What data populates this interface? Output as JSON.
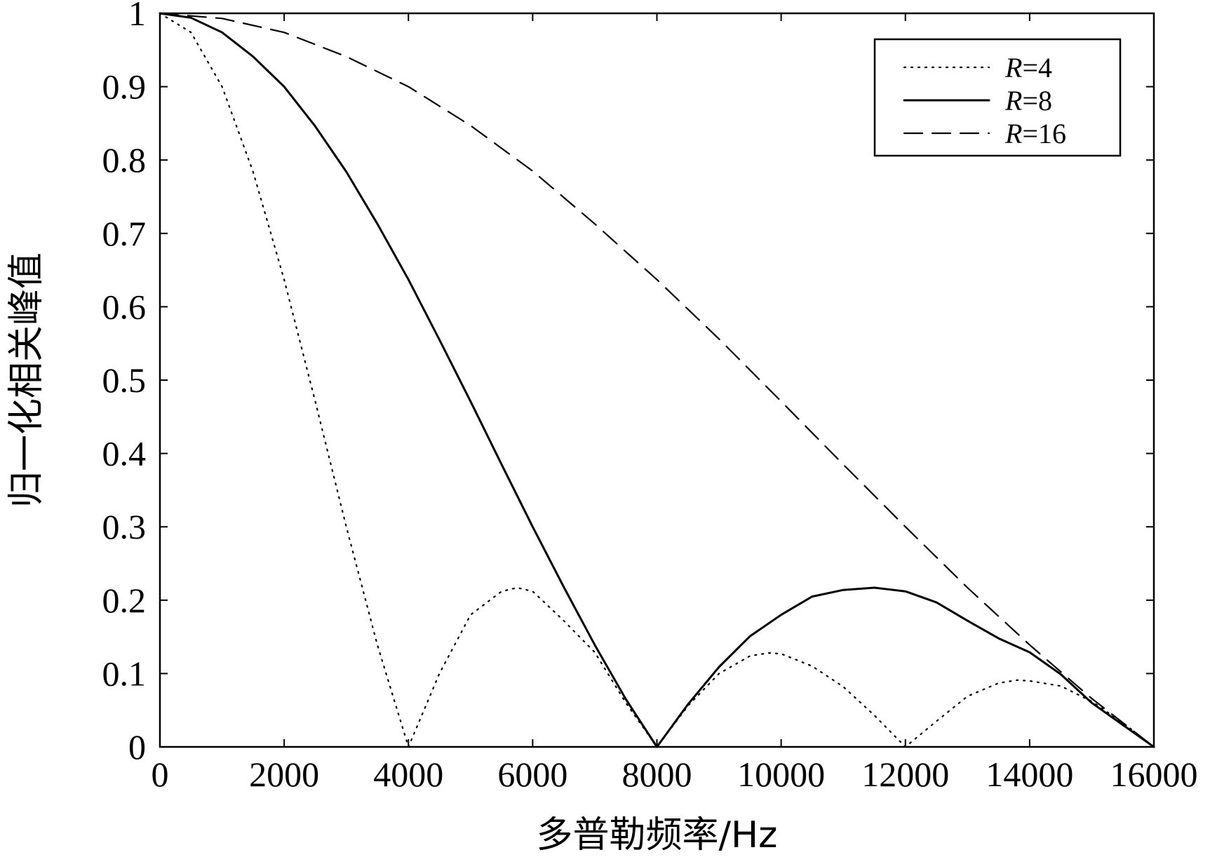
{
  "chart_data": {
    "type": "line",
    "title": "",
    "xlabel": "多普勒频率/Hz",
    "ylabel": "归一化相关峰值",
    "xlim": [
      0,
      16000
    ],
    "ylim": [
      0,
      1
    ],
    "xticks": [
      0,
      2000,
      4000,
      6000,
      8000,
      10000,
      12000,
      14000,
      16000
    ],
    "yticks": [
      0,
      0.1,
      0.2,
      0.3,
      0.4,
      0.5,
      0.6,
      0.7,
      0.8,
      0.9,
      1
    ],
    "xtick_labels": [
      "0",
      "2000",
      "4000",
      "6000",
      "8000",
      "10000",
      "12000",
      "14000",
      "16000"
    ],
    "ytick_labels": [
      "0",
      "0.1",
      "0.2",
      "0.3",
      "0.4",
      "0.5",
      "0.6",
      "0.7",
      "0.8",
      "0.9",
      "1"
    ],
    "grid": false,
    "legend_position": "top-right",
    "series": [
      {
        "name": "R=4",
        "label_var": "R",
        "label_rest": "=4",
        "style": "dotted",
        "color": "#000000",
        "x": [
          0,
          500,
          1000,
          1500,
          2000,
          2500,
          3000,
          3500,
          4000,
          4500,
          5000,
          5500,
          5750,
          6000,
          6500,
          7000,
          7500,
          8000,
          8500,
          9000,
          9500,
          9800,
          10000,
          10500,
          11000,
          11500,
          12000,
          12500,
          13000,
          13500,
          13800,
          14000,
          14500,
          15000,
          15500,
          16000
        ],
        "y": [
          1,
          0.974,
          0.9,
          0.784,
          0.637,
          0.471,
          0.3,
          0.139,
          0,
          0.1,
          0.18,
          0.212,
          0.217,
          0.212,
          0.172,
          0.129,
          0.06,
          0,
          0.056,
          0.1,
          0.124,
          0.128,
          0.127,
          0.11,
          0.082,
          0.043,
          0,
          0.035,
          0.069,
          0.087,
          0.091,
          0.09,
          0.083,
          0.062,
          0.033,
          0
        ]
      },
      {
        "name": "R=8",
        "label_var": "R",
        "label_rest": "=8",
        "style": "solid",
        "color": "#000000",
        "x": [
          0,
          500,
          1000,
          1500,
          2000,
          2500,
          3000,
          3500,
          4000,
          4500,
          5000,
          5500,
          6000,
          6500,
          7000,
          7500,
          8000,
          8500,
          9000,
          9500,
          10000,
          10500,
          11000,
          11500,
          12000,
          12500,
          13000,
          13500,
          14000,
          14500,
          15000,
          15500,
          16000
        ],
        "y": [
          1,
          0.994,
          0.974,
          0.941,
          0.9,
          0.846,
          0.784,
          0.713,
          0.637,
          0.555,
          0.471,
          0.385,
          0.3,
          0.218,
          0.139,
          0.065,
          0,
          0.058,
          0.109,
          0.151,
          0.18,
          0.205,
          0.214,
          0.217,
          0.212,
          0.197,
          0.172,
          0.148,
          0.129,
          0.099,
          0.06,
          0.03,
          0
        ]
      },
      {
        "name": "R=16",
        "label_var": "R",
        "label_rest": "=16",
        "style": "dashed",
        "color": "#000000",
        "x": [
          0,
          1000,
          2000,
          3000,
          4000,
          5000,
          6000,
          7000,
          8000,
          9000,
          10000,
          11000,
          12000,
          13000,
          14000,
          15000,
          16000
        ],
        "y": [
          1,
          0.993,
          0.974,
          0.941,
          0.9,
          0.847,
          0.785,
          0.713,
          0.637,
          0.556,
          0.471,
          0.385,
          0.3,
          0.217,
          0.139,
          0.066,
          0
        ]
      }
    ]
  }
}
